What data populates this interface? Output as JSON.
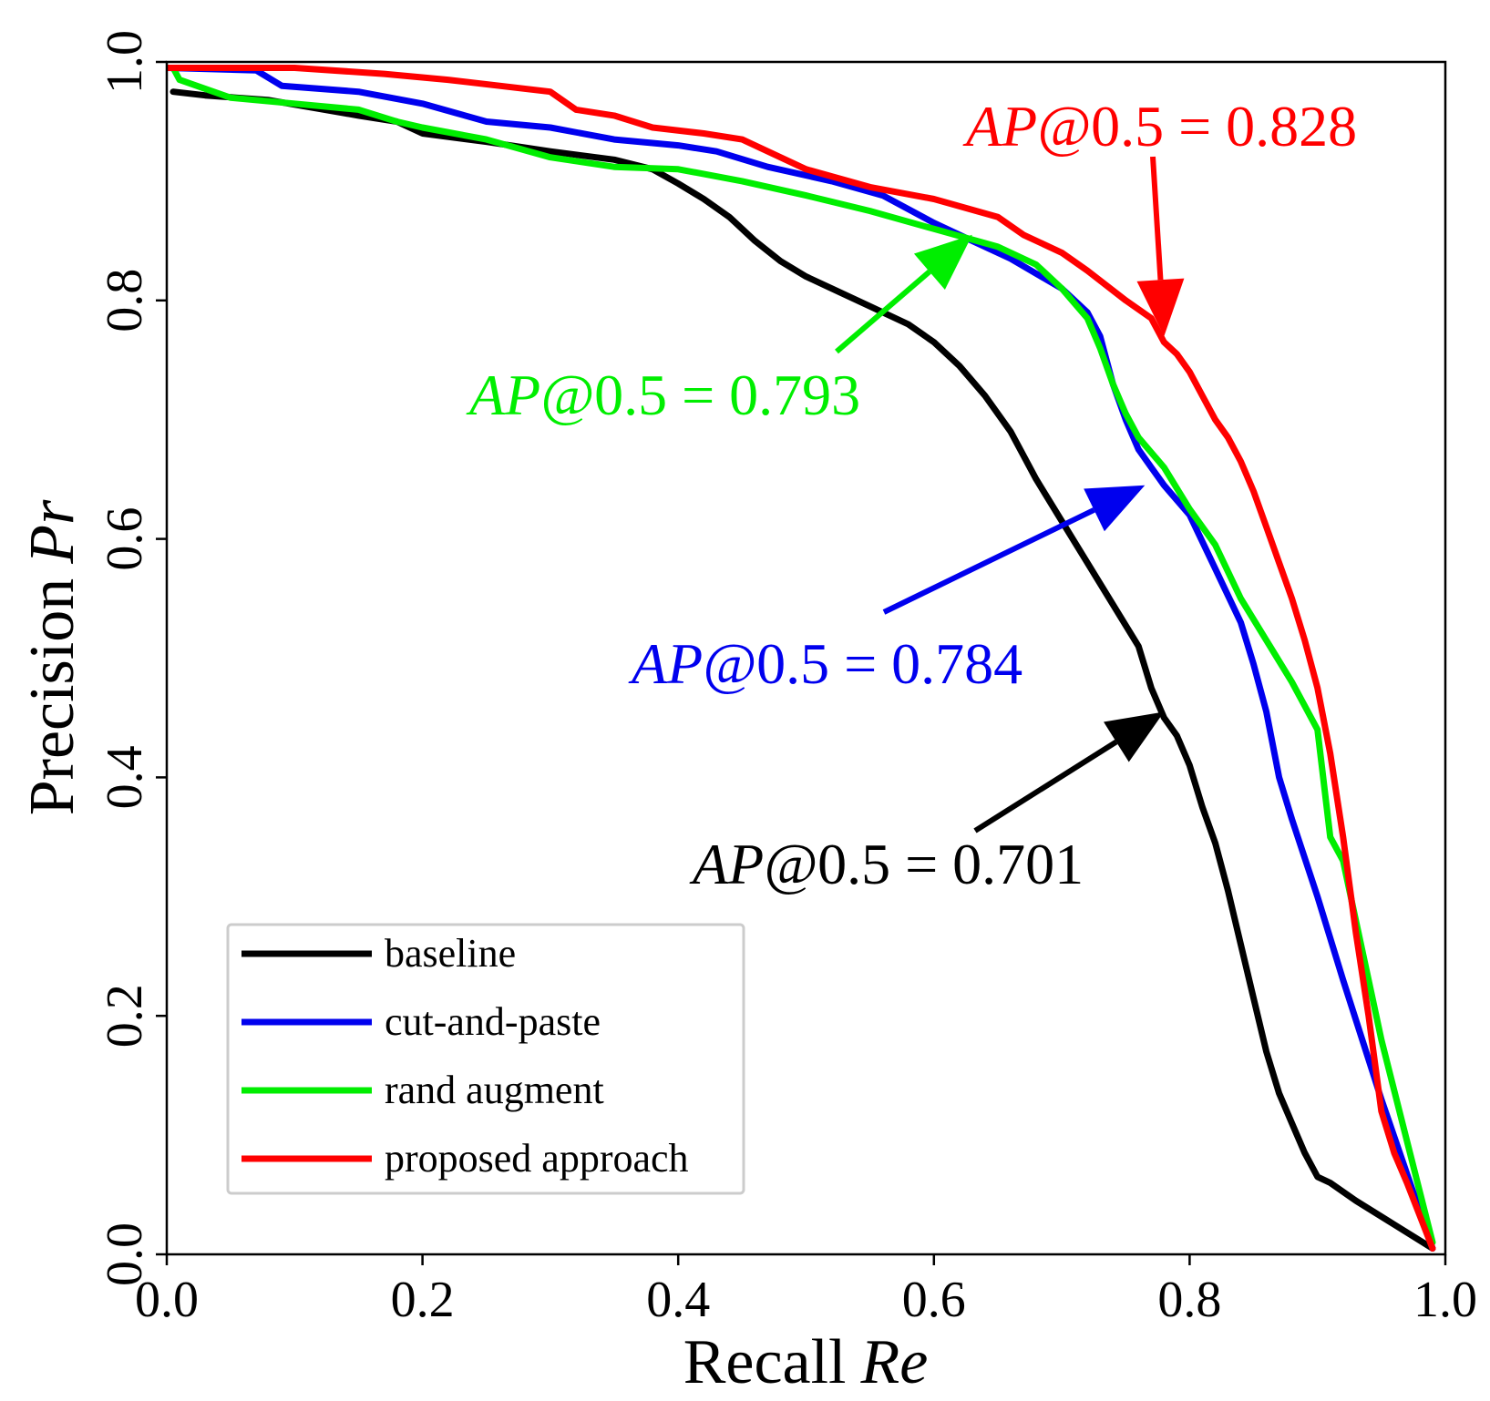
{
  "chart_data": {
    "type": "line",
    "title": "",
    "xlabel": "Recall",
    "xlabel_symbol": "Re",
    "ylabel": "Precision",
    "ylabel_symbol": "Pr",
    "xlim": [
      0.0,
      1.0
    ],
    "ylim": [
      0.0,
      1.0
    ],
    "xticks": [
      0.0,
      0.2,
      0.4,
      0.6,
      0.8,
      1.0
    ],
    "yticks": [
      0.0,
      0.2,
      0.4,
      0.6,
      0.8,
      1.0
    ],
    "xtick_labels": [
      "0.0",
      "0.2",
      "0.4",
      "0.6",
      "0.8",
      "1.0"
    ],
    "ytick_labels": [
      "0.0",
      "0.2",
      "0.4",
      "0.6",
      "0.8",
      "1.0"
    ],
    "grid": false,
    "legend_position": "bottom-left",
    "series": [
      {
        "name": "baseline",
        "color": "#000000",
        "x": [
          0.005,
          0.03,
          0.08,
          0.15,
          0.18,
          0.2,
          0.25,
          0.3,
          0.35,
          0.38,
          0.4,
          0.42,
          0.44,
          0.46,
          0.48,
          0.5,
          0.52,
          0.55,
          0.58,
          0.6,
          0.62,
          0.64,
          0.66,
          0.68,
          0.7,
          0.72,
          0.74,
          0.76,
          0.77,
          0.78,
          0.79,
          0.8,
          0.81,
          0.82,
          0.83,
          0.84,
          0.85,
          0.86,
          0.87,
          0.88,
          0.89,
          0.9,
          0.91,
          0.93,
          0.96,
          0.99
        ],
        "y": [
          0.975,
          0.972,
          0.968,
          0.955,
          0.95,
          0.94,
          0.933,
          0.925,
          0.918,
          0.91,
          0.898,
          0.885,
          0.87,
          0.85,
          0.833,
          0.82,
          0.81,
          0.795,
          0.78,
          0.765,
          0.745,
          0.72,
          0.69,
          0.65,
          0.615,
          0.58,
          0.545,
          0.51,
          0.475,
          0.45,
          0.435,
          0.41,
          0.375,
          0.345,
          0.305,
          0.26,
          0.215,
          0.17,
          0.135,
          0.11,
          0.085,
          0.065,
          0.06,
          0.045,
          0.025,
          0.005
        ]
      },
      {
        "name": "cut-and-paste",
        "color": "#0000ee",
        "x": [
          0.0,
          0.07,
          0.09,
          0.15,
          0.2,
          0.25,
          0.3,
          0.35,
          0.4,
          0.43,
          0.47,
          0.52,
          0.56,
          0.6,
          0.63,
          0.66,
          0.7,
          0.72,
          0.73,
          0.74,
          0.75,
          0.76,
          0.77,
          0.78,
          0.8,
          0.82,
          0.84,
          0.85,
          0.86,
          0.87,
          0.88,
          0.9,
          0.92,
          0.95,
          0.99
        ],
        "y": [
          0.995,
          0.993,
          0.98,
          0.975,
          0.965,
          0.95,
          0.945,
          0.935,
          0.93,
          0.925,
          0.912,
          0.9,
          0.888,
          0.865,
          0.85,
          0.835,
          0.81,
          0.79,
          0.77,
          0.73,
          0.7,
          0.675,
          0.66,
          0.645,
          0.62,
          0.575,
          0.53,
          0.495,
          0.455,
          0.4,
          0.365,
          0.3,
          0.23,
          0.13,
          0.005
        ]
      },
      {
        "name": "rand augment",
        "color": "#00ee00",
        "x": [
          0.005,
          0.01,
          0.05,
          0.1,
          0.15,
          0.18,
          0.2,
          0.25,
          0.3,
          0.35,
          0.4,
          0.45,
          0.5,
          0.55,
          0.6,
          0.65,
          0.68,
          0.7,
          0.72,
          0.73,
          0.74,
          0.75,
          0.76,
          0.78,
          0.8,
          0.82,
          0.84,
          0.86,
          0.88,
          0.89,
          0.9,
          0.91,
          0.92,
          0.95,
          0.99
        ],
        "y": [
          0.995,
          0.985,
          0.97,
          0.965,
          0.96,
          0.95,
          0.945,
          0.935,
          0.92,
          0.912,
          0.91,
          0.9,
          0.888,
          0.875,
          0.86,
          0.845,
          0.83,
          0.81,
          0.785,
          0.76,
          0.73,
          0.705,
          0.685,
          0.66,
          0.625,
          0.595,
          0.55,
          0.515,
          0.48,
          0.46,
          0.44,
          0.35,
          0.33,
          0.18,
          0.01
        ]
      },
      {
        "name": "proposed approach",
        "color": "#ff0000",
        "x": [
          0.0,
          0.1,
          0.17,
          0.22,
          0.3,
          0.32,
          0.35,
          0.38,
          0.42,
          0.45,
          0.5,
          0.55,
          0.6,
          0.65,
          0.67,
          0.7,
          0.72,
          0.75,
          0.77,
          0.78,
          0.79,
          0.8,
          0.81,
          0.82,
          0.83,
          0.84,
          0.85,
          0.86,
          0.87,
          0.88,
          0.89,
          0.9,
          0.91,
          0.92,
          0.93,
          0.94,
          0.95,
          0.96,
          0.97,
          0.99
        ],
        "y": [
          0.995,
          0.995,
          0.99,
          0.985,
          0.975,
          0.96,
          0.955,
          0.945,
          0.94,
          0.935,
          0.91,
          0.895,
          0.885,
          0.87,
          0.855,
          0.84,
          0.825,
          0.8,
          0.785,
          0.765,
          0.755,
          0.74,
          0.72,
          0.7,
          0.685,
          0.665,
          0.64,
          0.61,
          0.58,
          0.55,
          0.515,
          0.475,
          0.42,
          0.35,
          0.27,
          0.2,
          0.12,
          0.085,
          0.06,
          0.005
        ]
      }
    ],
    "annotations": [
      {
        "prefix": "AP@",
        "value_text": "0.5 = 0.828",
        "color": "#ff0000",
        "series": "proposed approach",
        "arrow_to": [
          0.78,
          0.77
        ]
      },
      {
        "prefix": "AP@",
        "value_text": "0.5 = 0.793",
        "color": "#00ee00",
        "series": "rand augment",
        "arrow_to": [
          0.63,
          0.855
        ]
      },
      {
        "prefix": "AP@",
        "value_text": "0.5 = 0.784",
        "color": "#0000ee",
        "series": "cut-and-paste",
        "arrow_to": [
          0.765,
          0.645
        ]
      },
      {
        "prefix": "AP@",
        "value_text": "0.5 = 0.701",
        "color": "#000000",
        "series": "baseline",
        "arrow_to": [
          0.78,
          0.455
        ]
      }
    ]
  }
}
